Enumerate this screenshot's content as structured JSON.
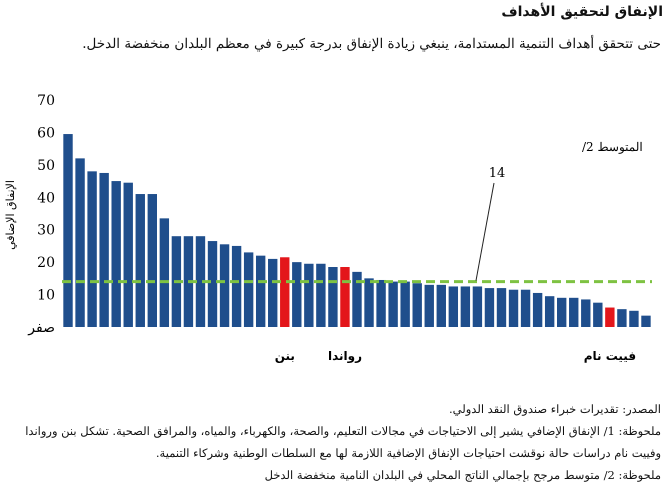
{
  "header": {
    "title": "الإنفاق لتحقيق الأهداف",
    "subtitle": "حتى تتحقق أهداف التنمية المستدامة، ينبغي زيادة الإنفاق بدرجة كبيرة في معظم البلدان منخفضة الدخل."
  },
  "chart_data": {
    "type": "bar",
    "ylabel": "الإنفاق الإضافي",
    "ylim": [
      0,
      70
    ],
    "yticks": [
      "صفر",
      "10",
      "20",
      "30",
      "40",
      "50",
      "60",
      "70"
    ],
    "grid": false,
    "values": [
      59.5,
      52,
      48,
      47.5,
      45,
      44.5,
      41,
      41,
      33.5,
      28,
      28,
      28,
      26.5,
      25.5,
      25,
      23,
      22,
      21,
      21.5,
      20,
      19.5,
      19.5,
      18.5,
      18.5,
      17,
      15,
      14.5,
      14,
      14,
      13.5,
      13,
      13,
      12.5,
      12.5,
      12.5,
      12,
      12,
      11.5,
      11.5,
      10.5,
      9.5,
      9,
      9,
      8.5,
      7.5,
      6,
      5.5,
      5,
      3.5
    ],
    "highlight_color": "#e3161b",
    "bar_color": "#1f4e8c",
    "highlighted": [
      {
        "index": 18,
        "label": "بنن"
      },
      {
        "index": 23,
        "label": "رواندا"
      },
      {
        "index": 45,
        "label": "فييت نام"
      }
    ],
    "reference_line": {
      "value": 14,
      "color": "#7ec242",
      "label": "المتوسط 2/",
      "value_label": "14"
    }
  },
  "notes": {
    "source": "المصدر: تقديرات خبراء صندوق النقد الدولي.",
    "note1": "ملحوظة: 1/ الإنفاق الإضافي يشير إلى الاحتياجات في مجالات التعليم، والصحة، والكهرباء، والمياه، والمرافق الصحية. تشكل بنن ورواندا وفييت نام دراسات حالة نوقشت احتياجات الإنفاق الإضافية اللازمة لها مع السلطات الوطنية وشركاء التنمية.",
    "note2": "ملحوظة: 2/ متوسط مرجح بإجمالي الناتج المحلي في البلدان النامية منخفضة الدخل"
  }
}
